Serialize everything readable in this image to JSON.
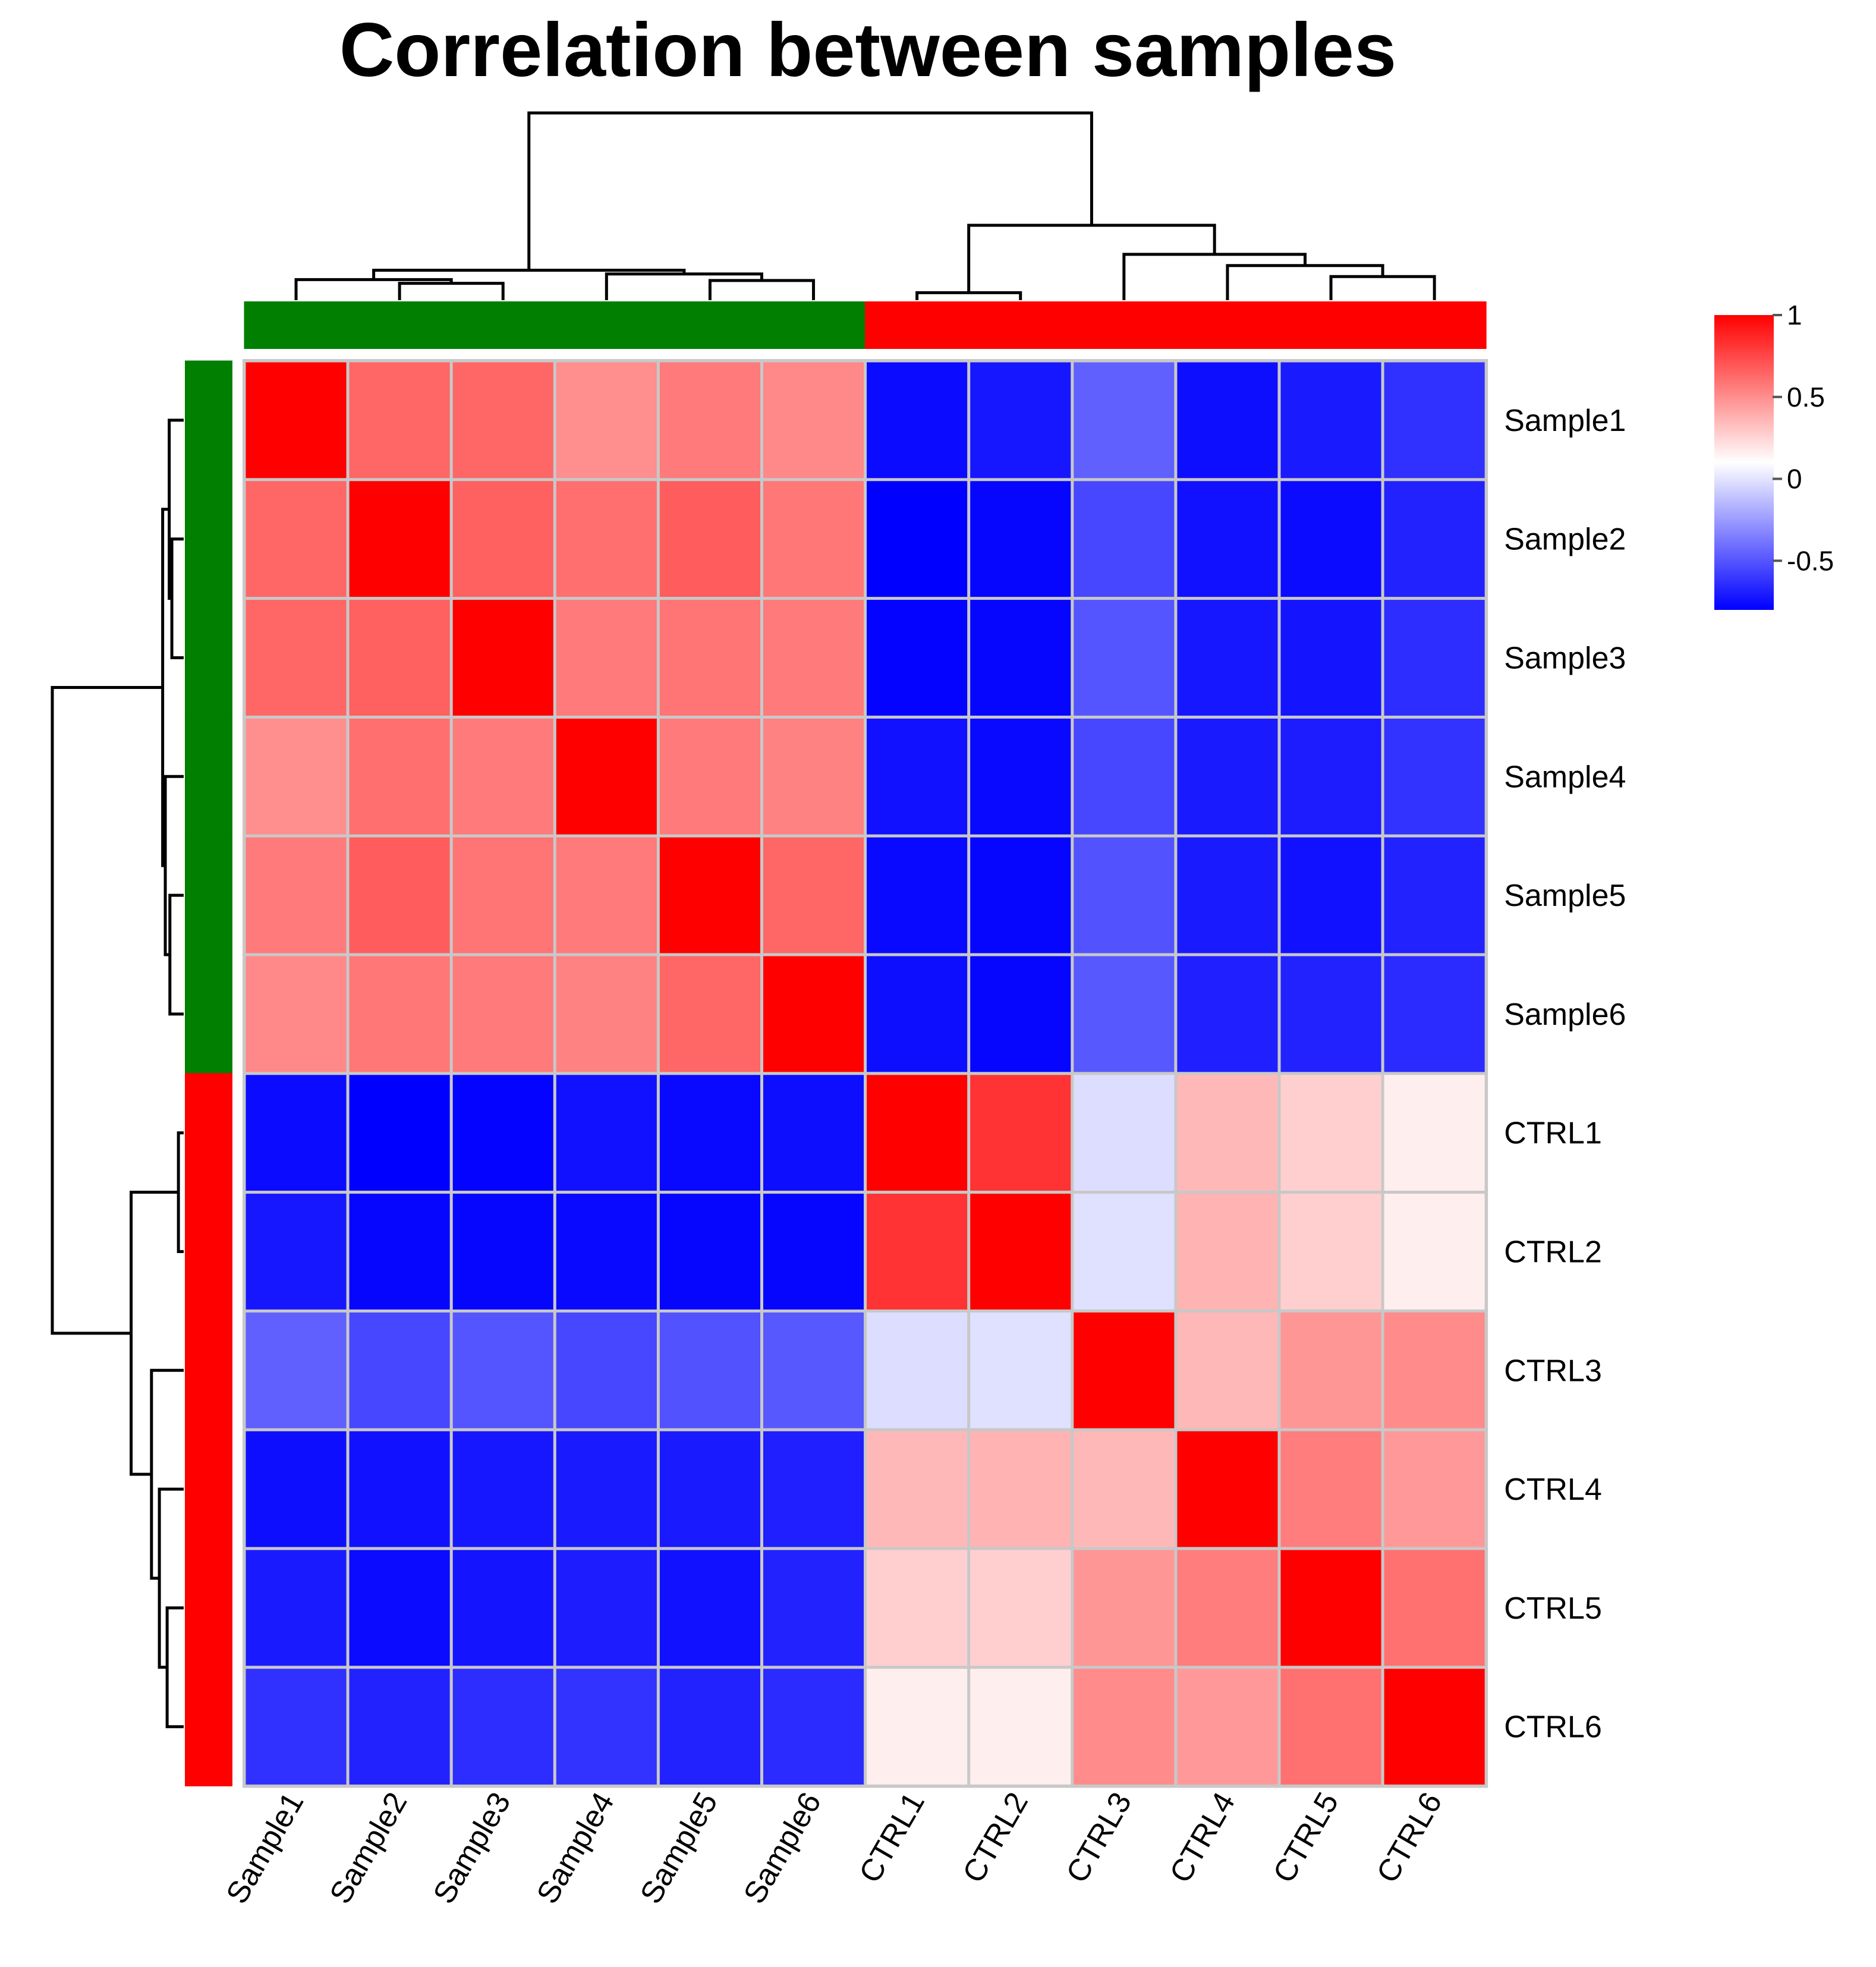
{
  "chart_data": {
    "type": "heatmap",
    "title": "Correlation between samples",
    "xlabel": "",
    "ylabel": "",
    "rows": [
      "Sample1",
      "Sample2",
      "Sample3",
      "Sample4",
      "Sample5",
      "Sample6",
      "CTRL1",
      "CTRL2",
      "CTRL3",
      "CTRL4",
      "CTRL5",
      "CTRL6"
    ],
    "columns": [
      "Sample1",
      "Sample2",
      "Sample3",
      "Sample4",
      "Sample5",
      "Sample6",
      "CTRL1",
      "CTRL2",
      "CTRL3",
      "CTRL4",
      "CTRL5",
      "CTRL6"
    ],
    "values": [
      [
        1.0,
        0.64,
        0.64,
        0.5,
        0.57,
        0.52,
        -0.76,
        -0.72,
        -0.46,
        -0.75,
        -0.71,
        -0.63
      ],
      [
        0.64,
        1.0,
        0.66,
        0.61,
        0.67,
        0.58,
        -0.8,
        -0.78,
        -0.55,
        -0.74,
        -0.76,
        -0.68
      ],
      [
        0.64,
        0.66,
        1.0,
        0.57,
        0.59,
        0.57,
        -0.79,
        -0.78,
        -0.5,
        -0.72,
        -0.73,
        -0.64
      ],
      [
        0.5,
        0.61,
        0.57,
        1.0,
        0.57,
        0.54,
        -0.74,
        -0.77,
        -0.55,
        -0.71,
        -0.7,
        -0.62
      ],
      [
        0.57,
        0.67,
        0.59,
        0.57,
        1.0,
        0.64,
        -0.77,
        -0.78,
        -0.51,
        -0.71,
        -0.74,
        -0.68
      ],
      [
        0.52,
        0.58,
        0.57,
        0.54,
        0.64,
        1.0,
        -0.75,
        -0.78,
        -0.49,
        -0.69,
        -0.68,
        -0.65
      ],
      [
        -0.76,
        -0.8,
        -0.79,
        -0.74,
        -0.77,
        -0.75,
        1.0,
        0.82,
        -0.02,
        0.35,
        0.27,
        0.16
      ],
      [
        -0.72,
        -0.78,
        -0.78,
        -0.77,
        -0.78,
        -0.78,
        0.82,
        1.0,
        -0.01,
        0.37,
        0.27,
        0.16
      ],
      [
        -0.46,
        -0.55,
        -0.5,
        -0.55,
        -0.51,
        -0.49,
        -0.02,
        -0.01,
        1.0,
        0.35,
        0.47,
        0.51
      ],
      [
        -0.75,
        -0.74,
        -0.72,
        -0.71,
        -0.71,
        -0.69,
        0.35,
        0.37,
        0.35,
        1.0,
        0.56,
        0.46
      ],
      [
        -0.71,
        -0.76,
        -0.73,
        -0.7,
        -0.74,
        -0.68,
        0.27,
        0.27,
        0.47,
        0.56,
        1.0,
        0.6
      ],
      [
        -0.63,
        -0.68,
        -0.64,
        -0.62,
        -0.68,
        -0.65,
        0.16,
        0.16,
        0.51,
        0.46,
        0.6,
        1.0
      ]
    ],
    "color_scale": {
      "low": "#0000FF",
      "mid": "#FFFFFF",
      "high": "#FF0000",
      "min": -0.8,
      "mid_value": 0.1,
      "max": 1.0,
      "ticks": [
        1,
        0.5,
        0,
        -0.5
      ],
      "tick_labels": [
        "1",
        "0.5",
        "0",
        "-0.5"
      ]
    },
    "grid_color": "#C8C8C8",
    "annotation": {
      "groups": [
        "Sample",
        "Sample",
        "Sample",
        "Sample",
        "Sample",
        "Sample",
        "CTRL",
        "CTRL",
        "CTRL",
        "CTRL",
        "CTRL",
        "CTRL"
      ],
      "colors": {
        "Sample": "#007F00",
        "CTRL": "#FF0000"
      }
    },
    "dendrogram": {
      "note": "merge heights normalized to root = 1",
      "tree": {
        "h": 1.0,
        "children": [
          {
            "h": 0.16,
            "children": [
              {
                "h": 0.11,
                "children": [
                  {
                    "leaf": 0
                  },
                  {
                    "h": 0.09,
                    "children": [
                      {
                        "leaf": 1
                      },
                      {
                        "leaf": 2
                      }
                    ]
                  }
                ]
              },
              {
                "h": 0.14,
                "children": [
                  {
                    "leaf": 3
                  },
                  {
                    "h": 0.105,
                    "children": [
                      {
                        "leaf": 4
                      },
                      {
                        "leaf": 5
                      }
                    ]
                  }
                ]
              }
            ]
          },
          {
            "h": 0.4,
            "children": [
              {
                "h": 0.04,
                "children": [
                  {
                    "leaf": 6
                  },
                  {
                    "leaf": 7
                  }
                ]
              },
              {
                "h": 0.245,
                "children": [
                  {
                    "leaf": 8
                  },
                  {
                    "h": 0.185,
                    "children": [
                      {
                        "leaf": 9
                      },
                      {
                        "h": 0.126,
                        "children": [
                          {
                            "leaf": 10
                          },
                          {
                            "leaf": 11
                          }
                        ]
                      }
                    ]
                  }
                ]
              }
            ]
          }
        ]
      }
    },
    "legend_position": "right"
  }
}
